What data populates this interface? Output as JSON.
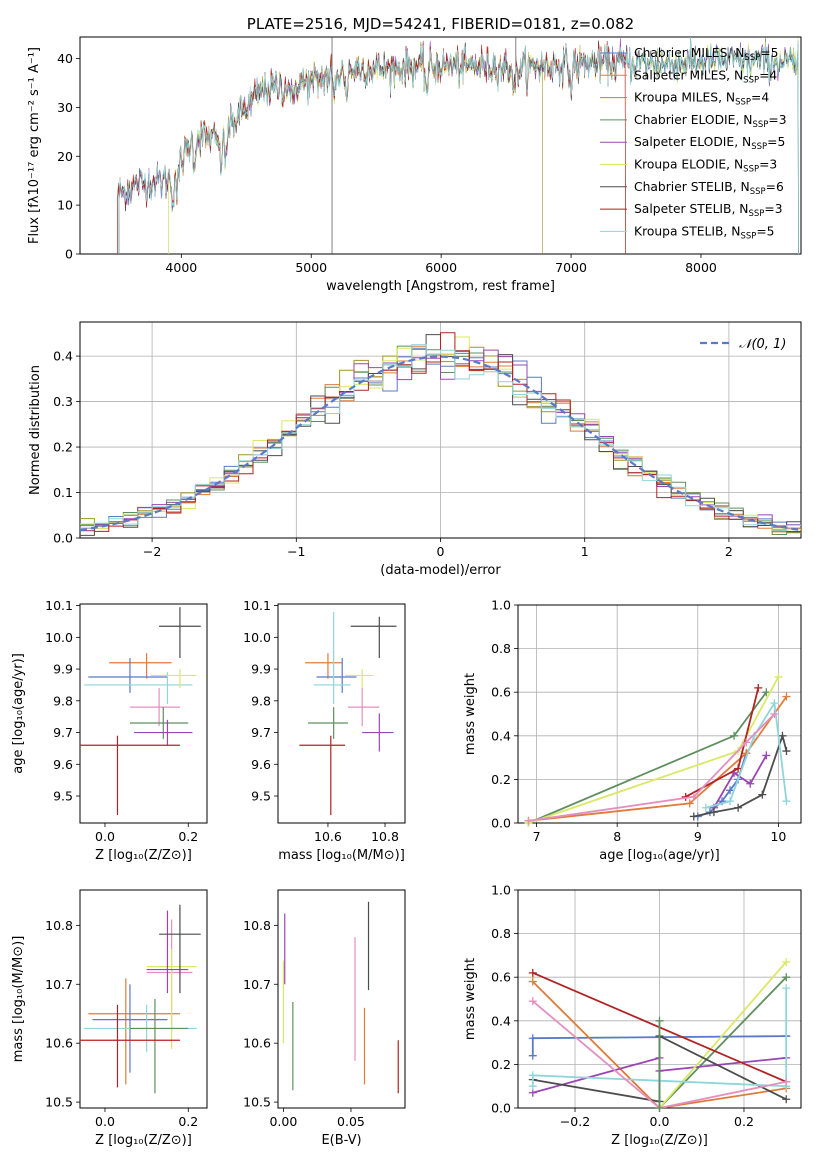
{
  "chart_data": [
    {
      "type": "line",
      "id": "spectrum",
      "title": "PLATE=2516, MJD=54241, FIBERID=0181, z=0.082",
      "xlabel": "wavelength [Angstrom, rest frame]",
      "ylabel": "Flux [fλ10⁻¹⁷ erg cm⁻² s⁻¹ A⁻¹]",
      "xlim": [
        3220,
        8770
      ],
      "ylim": [
        0,
        44.4
      ],
      "xticks": [
        4000,
        5000,
        6000,
        7000,
        8000
      ],
      "yticks": [
        0,
        10,
        20,
        30,
        40
      ],
      "grid": false,
      "legend": "upper right",
      "series": [
        {
          "name": "Chabrier MILES, N",
          "sub": "SSP",
          "suffix": "=5",
          "color": "#5a79c9"
        },
        {
          "name": "Salpeter MILES, N",
          "sub": "SSP",
          "suffix": "=4",
          "color": "#e07b39"
        },
        {
          "name": "Kroupa MILES, N",
          "sub": "SSP",
          "suffix": "=4",
          "color": "#a39327"
        },
        {
          "name": "Chabrier ELODIE, N",
          "sub": "SSP",
          "suffix": "=3",
          "color": "#5f8f5f"
        },
        {
          "name": "Salpeter ELODIE, N",
          "sub": "SSP",
          "suffix": "=5",
          "color": "#9b45b5"
        },
        {
          "name": "Kroupa ELODIE, N",
          "sub": "SSP",
          "suffix": "=3",
          "color": "#dbe866"
        },
        {
          "name": "Chabrier STELIB, N",
          "sub": "SSP",
          "suffix": "=6",
          "color": "#4d4d4d"
        },
        {
          "name": "Salpeter STELIB, N",
          "sub": "SSP",
          "suffix": "=3",
          "color": "#b22222"
        },
        {
          "name": "Kroupa STELIB, N",
          "sub": "SSP",
          "suffix": "=5",
          "color": "#8ed6da"
        }
      ],
      "continuum_points": [
        [
          3500,
          12
        ],
        [
          3650,
          14
        ],
        [
          3800,
          15
        ],
        [
          3900,
          15
        ],
        [
          4000,
          19
        ],
        [
          4100,
          24
        ],
        [
          4200,
          24
        ],
        [
          4300,
          23
        ],
        [
          4400,
          27
        ],
        [
          4500,
          30
        ],
        [
          4600,
          33
        ],
        [
          4700,
          34
        ],
        [
          4800,
          34
        ],
        [
          4900,
          35
        ],
        [
          5000,
          35
        ],
        [
          5200,
          37
        ],
        [
          5400,
          38
        ],
        [
          5600,
          38
        ],
        [
          5800,
          38.5
        ],
        [
          6000,
          38.5
        ],
        [
          6200,
          38.5
        ],
        [
          6400,
          38.5
        ],
        [
          6600,
          38
        ],
        [
          6800,
          38.5
        ],
        [
          7000,
          39
        ],
        [
          7200,
          39
        ],
        [
          7400,
          39
        ],
        [
          7600,
          39
        ],
        [
          7800,
          39
        ],
        [
          8000,
          39.5
        ],
        [
          8200,
          39.5
        ],
        [
          8400,
          39.5
        ],
        [
          8700,
          39
        ]
      ]
    },
    {
      "type": "histogram",
      "id": "residuals",
      "xlabel": "(data-model)/error",
      "ylabel": "Normed distribution",
      "xlim": [
        -2.5,
        2.5
      ],
      "ylim": [
        0,
        0.475
      ],
      "xticks": [
        -2,
        -1,
        0,
        1,
        2
      ],
      "yticks": [
        0.0,
        0.1,
        0.2,
        0.3,
        0.4
      ],
      "grid": true,
      "legend_label": "𝒩(0, 1)",
      "legend": "upper right",
      "reference_curve": {
        "mean": 0,
        "sigma": 1,
        "color": "#5a79c9"
      },
      "bin_width": 0.1
    },
    {
      "type": "errorbar",
      "id": "age-vs-Z",
      "xlabel": "Z [log₁₀(Z/Z⊙)]",
      "ylabel": "age  [log₁₀(age/yr)]",
      "xlim": [
        -0.06,
        0.245
      ],
      "ylim": [
        9.415,
        10.105
      ],
      "xticks": [
        0.0,
        0.2
      ],
      "yticks": [
        9.5,
        9.6,
        9.7,
        9.8,
        9.9,
        10.0,
        10.1
      ],
      "points": [
        {
          "x": 0.1,
          "y": 9.92,
          "xerr": [
            0.09,
            0.06
          ],
          "yerr": [
            0.05,
            0.03
          ],
          "color": "#e07b39"
        },
        {
          "x": 0.06,
          "y": 9.875,
          "xerr": [
            0.1,
            0.09
          ],
          "yerr": [
            0.05,
            0.06
          ],
          "color": "#5a79c9"
        },
        {
          "x": 0.13,
          "y": 9.78,
          "xerr": [
            0.07,
            0.05
          ],
          "yerr": [
            0.06,
            0.06
          ],
          "color": "#e48fbf"
        },
        {
          "x": 0.15,
          "y": 9.85,
          "xerr": [
            0.2,
            0.06
          ],
          "yerr": [
            0.06,
            0.04
          ],
          "color": "#8ed6da"
        },
        {
          "x": 0.18,
          "y": 9.88,
          "xerr": [
            0.07,
            0.04
          ],
          "yerr": [
            0.04,
            0.02
          ],
          "color": "#dbe866"
        },
        {
          "x": 0.14,
          "y": 9.73,
          "xerr": [
            0.08,
            0.06
          ],
          "yerr": [
            0.05,
            0.05
          ],
          "color": "#5f8f5f"
        },
        {
          "x": 0.15,
          "y": 9.7,
          "xerr": [
            0.08,
            0.06
          ],
          "yerr": [
            0.04,
            0.04
          ],
          "color": "#9b45b5"
        },
        {
          "x": 0.18,
          "y": 10.035,
          "xerr": [
            0.05,
            0.05
          ],
          "yerr": [
            0.1,
            0.06
          ],
          "color": "#4d4d4d"
        },
        {
          "x": 0.03,
          "y": 9.66,
          "xerr": [
            0.09,
            0.15
          ],
          "yerr": [
            0.22,
            0.03
          ],
          "color": "#b22222"
        }
      ]
    },
    {
      "type": "errorbar",
      "id": "age-vs-mass",
      "xlabel": "mass [log₁₀(M/M⊙)]",
      "ylabel": "",
      "xlim": [
        10.425,
        10.87
      ],
      "ylim": [
        9.415,
        10.105
      ],
      "xticks": [
        10.6,
        10.8
      ],
      "yticks": [
        9.5,
        9.6,
        9.7,
        9.8,
        9.9,
        10.0,
        10.1
      ],
      "points": [
        {
          "x": 10.6,
          "y": 9.92,
          "xerr": [
            0.08,
            0.05
          ],
          "yerr": [
            0.05,
            0.03
          ],
          "color": "#e07b39"
        },
        {
          "x": 10.65,
          "y": 9.875,
          "xerr": [
            0.09,
            0.05
          ],
          "yerr": [
            0.05,
            0.06
          ],
          "color": "#5a79c9"
        },
        {
          "x": 10.72,
          "y": 9.78,
          "xerr": [
            0.05,
            0.06
          ],
          "yerr": [
            0.06,
            0.06
          ],
          "color": "#e48fbf"
        },
        {
          "x": 10.62,
          "y": 9.85,
          "xerr": [
            0.07,
            0.06
          ],
          "yerr": [
            0.06,
            0.23
          ],
          "color": "#8ed6da"
        },
        {
          "x": 10.72,
          "y": 9.88,
          "xerr": [
            0.06,
            0.04
          ],
          "yerr": [
            0.04,
            0.02
          ],
          "color": "#dbe866"
        },
        {
          "x": 10.62,
          "y": 9.73,
          "xerr": [
            0.09,
            0.05
          ],
          "yerr": [
            0.05,
            0.05
          ],
          "color": "#5f8f5f"
        },
        {
          "x": 10.78,
          "y": 9.7,
          "xerr": [
            0.06,
            0.05
          ],
          "yerr": [
            0.06,
            0.06
          ],
          "color": "#9b45b5"
        },
        {
          "x": 10.78,
          "y": 10.035,
          "xerr": [
            0.1,
            0.06
          ],
          "yerr": [
            0.1,
            0.03
          ],
          "color": "#4d4d4d"
        },
        {
          "x": 10.61,
          "y": 9.66,
          "xerr": [
            0.11,
            0.05
          ],
          "yerr": [
            0.22,
            0.03
          ],
          "color": "#b22222"
        }
      ]
    },
    {
      "type": "line",
      "id": "mass-weight-vs-age",
      "xlabel": "age  [log₁₀(age/yr)]",
      "ylabel": "mass weight",
      "xlim": [
        6.77,
        10.28
      ],
      "ylim": [
        0,
        1.0
      ],
      "xticks": [
        7,
        8,
        9,
        10
      ],
      "yticks": [
        0.0,
        0.2,
        0.4,
        0.6,
        0.8,
        1.0
      ],
      "grid": true,
      "series": [
        {
          "color": "#5a79c9",
          "x": [
            9.0,
            9.15,
            9.3,
            9.4,
            9.5,
            9.6
          ],
          "y": [
            0.03,
            0.05,
            0.1,
            0.15,
            0.2,
            0.32
          ]
        },
        {
          "color": "#e07b39",
          "x": [
            6.9,
            8.9,
            9.6,
            10.1
          ],
          "y": [
            0.01,
            0.09,
            0.32,
            0.58
          ]
        },
        {
          "color": "#5f8f5f",
          "x": [
            6.9,
            9.45,
            9.85
          ],
          "y": [
            0.0,
            0.4,
            0.6
          ]
        },
        {
          "color": "#9b45b5",
          "x": [
            9.2,
            9.45,
            9.65,
            9.85
          ],
          "y": [
            0.07,
            0.23,
            0.18,
            0.31
          ]
        },
        {
          "color": "#dbe866",
          "x": [
            6.9,
            9.5,
            10.0
          ],
          "y": [
            0.0,
            0.33,
            0.67
          ]
        },
        {
          "color": "#4d4d4d",
          "x": [
            8.95,
            9.2,
            9.5,
            9.8,
            10.05,
            10.1
          ],
          "y": [
            0.03,
            0.05,
            0.07,
            0.13,
            0.4,
            0.33
          ]
        },
        {
          "color": "#b22222",
          "x": [
            8.85,
            9.5,
            9.75
          ],
          "y": [
            0.12,
            0.25,
            0.62
          ]
        },
        {
          "color": "#8ed6da",
          "x": [
            9.1,
            9.4,
            9.7,
            9.95,
            10.1
          ],
          "y": [
            0.07,
            0.1,
            0.4,
            0.55,
            0.1
          ]
        },
        {
          "color": "#e48fbf",
          "x": [
            6.9,
            8.95,
            9.6,
            9.95
          ],
          "y": [
            0.01,
            0.12,
            0.37,
            0.5
          ]
        }
      ]
    },
    {
      "type": "errorbar",
      "id": "mass-vs-Z",
      "xlabel": "Z [log₁₀(Z/Z⊙)]",
      "ylabel": "mass [log₁₀(M/M⊙)]",
      "xlim": [
        -0.06,
        0.245
      ],
      "ylim": [
        10.49,
        10.86
      ],
      "xticks": [
        0.0,
        0.2
      ],
      "yticks": [
        10.5,
        10.6,
        10.7,
        10.8
      ],
      "points": [
        {
          "x": 0.05,
          "y": 10.65,
          "xerr": [
            0.09,
            0.13
          ],
          "yerr": [
            0.12,
            0.06
          ],
          "color": "#e07b39"
        },
        {
          "x": 0.06,
          "y": 10.64,
          "xerr": [
            0.09,
            0.09
          ],
          "yerr": [
            0.09,
            0.06
          ],
          "color": "#5a79c9"
        },
        {
          "x": 0.16,
          "y": 10.72,
          "xerr": [
            0.06,
            0.05
          ],
          "yerr": [
            0.1,
            0.09
          ],
          "color": "#e48fbf"
        },
        {
          "x": 0.1,
          "y": 10.625,
          "xerr": [
            0.15,
            0.12
          ],
          "yerr": [
            0.04,
            0.04
          ],
          "color": "#8ed6da"
        },
        {
          "x": 0.16,
          "y": 10.73,
          "xerr": [
            0.06,
            0.06
          ],
          "yerr": [
            0.14,
            0.03
          ],
          "color": "#dbe866"
        },
        {
          "x": 0.12,
          "y": 10.625,
          "xerr": [
            0.06,
            0.08
          ],
          "yerr": [
            0.11,
            0.05
          ],
          "color": "#5f8f5f"
        },
        {
          "x": 0.15,
          "y": 10.725,
          "xerr": [
            0.05,
            0.05
          ],
          "yerr": [
            0.04,
            0.1
          ],
          "color": "#9b45b5"
        },
        {
          "x": 0.18,
          "y": 10.785,
          "xerr": [
            0.05,
            0.05
          ],
          "yerr": [
            0.1,
            0.05
          ],
          "color": "#4d4d4d"
        },
        {
          "x": 0.03,
          "y": 10.605,
          "xerr": [
            0.09,
            0.15
          ],
          "yerr": [
            0.08,
            0.06
          ],
          "color": "#b22222"
        }
      ]
    },
    {
      "type": "errorbar",
      "id": "mass-vs-ebv",
      "xlabel": "E(B-V)",
      "ylabel": "",
      "xlim": [
        -0.004,
        0.09
      ],
      "ylim": [
        10.49,
        10.86
      ],
      "xticks": [
        0.0,
        0.05
      ],
      "yticks": [
        10.5,
        10.6,
        10.7,
        10.8
      ],
      "points": [
        {
          "x": 0.06,
          "y": 10.6,
          "xerr": [
            0,
            0
          ],
          "yerr": [
            0.07,
            0.06
          ],
          "color": "#e07b39"
        },
        {
          "x": 0.0,
          "y": 10.68,
          "xerr": [
            0,
            0
          ],
          "yerr": [
            0.08,
            0.06
          ],
          "color": "#dbe866"
        },
        {
          "x": 0.001,
          "y": 10.75,
          "xerr": [
            0,
            0
          ],
          "yerr": [
            0.05,
            0.07
          ],
          "color": "#9b45b5"
        },
        {
          "x": 0.007,
          "y": 10.59,
          "xerr": [
            0,
            0
          ],
          "yerr": [
            0.07,
            0.08
          ],
          "color": "#5f8f5f"
        },
        {
          "x": 0.053,
          "y": 10.68,
          "xerr": [
            0,
            0
          ],
          "yerr": [
            0.11,
            0.1
          ],
          "color": "#e48fbf"
        },
        {
          "x": 0.063,
          "y": 10.76,
          "xerr": [
            0,
            0
          ],
          "yerr": [
            0.07,
            0.08
          ],
          "color": "#4d4d4d"
        },
        {
          "x": 0.085,
          "y": 10.555,
          "xerr": [
            0,
            0
          ],
          "yerr": [
            0.04,
            0.05
          ],
          "color": "#b22222"
        }
      ]
    },
    {
      "type": "line",
      "id": "mass-weight-vs-Z",
      "xlabel": "Z [log₁₀(Z/Z⊙)]",
      "ylabel": "mass weight",
      "xlim": [
        -0.335,
        0.335
      ],
      "ylim": [
        0,
        1.0
      ],
      "xticks": [
        -0.2,
        0.0,
        0.2
      ],
      "yticks": [
        0.0,
        0.2,
        0.4,
        0.6,
        0.8,
        1.0
      ],
      "grid": true,
      "series": [
        {
          "color": "#5a79c9",
          "x": [
            -0.3,
            -0.3,
            0.3,
            0.3
          ],
          "y": [
            0.24,
            0.32,
            0.33,
            0.33
          ]
        },
        {
          "color": "#e07b39",
          "x": [
            -0.3,
            0.0,
            0.3
          ],
          "y": [
            0.58,
            0.0,
            0.09
          ]
        },
        {
          "color": "#5f8f5f",
          "x": [
            0.0,
            0.3
          ],
          "y": [
            0.0,
            0.6
          ]
        },
        {
          "color": "#9b45b5",
          "x": [
            -0.3,
            0.0,
            0.0,
            0.3
          ],
          "y": [
            0.07,
            0.23,
            0.17,
            0.23
          ]
        },
        {
          "color": "#dbe866",
          "x": [
            0.0,
            0.3
          ],
          "y": [
            0.0,
            0.67
          ]
        },
        {
          "color": "#4d4d4d",
          "x": [
            -0.3,
            0.0,
            0.0,
            0.3
          ],
          "y": [
            0.13,
            0.03,
            0.33,
            0.04
          ]
        },
        {
          "color": "#b22222",
          "x": [
            -0.3,
            0.3
          ],
          "y": [
            0.62,
            0.12
          ]
        },
        {
          "color": "#8ed6da",
          "x": [
            -0.3,
            -0.3,
            0.3,
            0.3
          ],
          "y": [
            0.1,
            0.15,
            0.1,
            0.55
          ]
        },
        {
          "color": "#e48fbf",
          "x": [
            -0.3,
            0.0,
            0.3
          ],
          "y": [
            0.49,
            0.0,
            0.12
          ]
        },
        {
          "color": "#5f8f5f",
          "x": [
            0.0,
            0.0
          ],
          "y": [
            0.0,
            0.4
          ]
        }
      ]
    }
  ]
}
